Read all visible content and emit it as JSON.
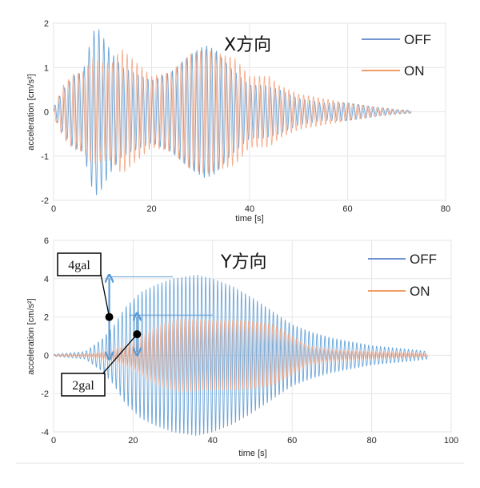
{
  "colors": {
    "off": "#5b9bd5",
    "on": "#f4a582",
    "off_legend": "#4472c4",
    "on_legend": "#ed7d31",
    "annotation": "#5b9bd5"
  },
  "chart_data": [
    {
      "type": "line",
      "title": "X方向",
      "xlabel": "time [s]",
      "ylabel": "acceleration [cm/s²]",
      "xlim": [
        0,
        80
      ],
      "ylim": [
        -2,
        2
      ],
      "xticks": [
        "0",
        "20",
        "40",
        "60",
        "80"
      ],
      "yticks": [
        "-2",
        "-1",
        "0",
        "1",
        "2"
      ],
      "grid": true,
      "legend_position": "top-right",
      "series": [
        {
          "name": "OFF",
          "frequency_hz": 1.0,
          "duration": [
            0,
            73
          ],
          "envelope": [
            [
              0,
              0.1
            ],
            [
              2,
              0.5
            ],
            [
              4,
              0.8
            ],
            [
              6,
              0.9
            ],
            [
              8,
              1.8
            ],
            [
              9,
              1.9
            ],
            [
              10,
              1.7
            ],
            [
              12,
              1.3
            ],
            [
              14,
              1.0
            ],
            [
              16,
              0.9
            ],
            [
              18,
              0.8
            ],
            [
              20,
              0.7
            ],
            [
              24,
              0.9
            ],
            [
              28,
              1.3
            ],
            [
              31,
              1.5
            ],
            [
              33,
              1.4
            ],
            [
              36,
              1.0
            ],
            [
              40,
              0.6
            ],
            [
              43,
              0.6
            ],
            [
              46,
              0.5
            ],
            [
              50,
              0.3
            ],
            [
              55,
              0.2
            ],
            [
              60,
              0.2
            ],
            [
              66,
              0.1
            ],
            [
              70,
              0.05
            ],
            [
              73,
              0.03
            ]
          ]
        },
        {
          "name": "ON",
          "frequency_hz": 1.0,
          "duration": [
            0,
            73
          ],
          "envelope": [
            [
              0,
              0.1
            ],
            [
              2,
              0.6
            ],
            [
              4,
              0.85
            ],
            [
              6,
              0.9
            ],
            [
              8,
              1.2
            ],
            [
              10,
              1.1
            ],
            [
              12,
              1.1
            ],
            [
              13,
              1.3
            ],
            [
              14,
              1.4
            ],
            [
              16,
              1.2
            ],
            [
              18,
              1.0
            ],
            [
              20,
              0.8
            ],
            [
              24,
              0.9
            ],
            [
              28,
              1.3
            ],
            [
              31,
              1.4
            ],
            [
              34,
              1.3
            ],
            [
              37,
              1.2
            ],
            [
              40,
              0.8
            ],
            [
              44,
              0.8
            ],
            [
              46,
              0.6
            ],
            [
              50,
              0.4
            ],
            [
              55,
              0.3
            ],
            [
              60,
              0.2
            ],
            [
              66,
              0.1
            ],
            [
              70,
              0.05
            ],
            [
              73,
              0.03
            ]
          ]
        }
      ]
    },
    {
      "type": "line",
      "title": "Y方向",
      "xlabel": "time [s]",
      "ylabel": "acceleration [cm/s²]",
      "xlim": [
        0,
        100
      ],
      "ylim": [
        -4,
        6
      ],
      "xticks": [
        "0",
        "20",
        "40",
        "60",
        "80",
        "100"
      ],
      "yticks": [
        "-4",
        "-2",
        "0",
        "2",
        "4",
        "6"
      ],
      "grid": true,
      "legend_position": "top-right",
      "series": [
        {
          "name": "OFF",
          "frequency_hz": 1.0,
          "duration": [
            0,
            94
          ],
          "envelope": [
            [
              0,
              0.05
            ],
            [
              8,
              0.2
            ],
            [
              12,
              0.8
            ],
            [
              15,
              1.5
            ],
            [
              18,
              2.5
            ],
            [
              22,
              3.3
            ],
            [
              26,
              3.7
            ],
            [
              30,
              4.0
            ],
            [
              33,
              4.1
            ],
            [
              36,
              4.2
            ],
            [
              40,
              4.0
            ],
            [
              45,
              3.6
            ],
            [
              50,
              3.0
            ],
            [
              55,
              2.3
            ],
            [
              60,
              1.6
            ],
            [
              65,
              1.2
            ],
            [
              70,
              0.9
            ],
            [
              75,
              0.7
            ],
            [
              80,
              0.5
            ],
            [
              85,
              0.4
            ],
            [
              90,
              0.3
            ],
            [
              94,
              0.2
            ]
          ]
        },
        {
          "name": "ON",
          "frequency_hz": 1.0,
          "duration": [
            0,
            94
          ],
          "envelope": [
            [
              0,
              0.05
            ],
            [
              10,
              0.1
            ],
            [
              15,
              0.3
            ],
            [
              20,
              0.7
            ],
            [
              24,
              1.3
            ],
            [
              28,
              1.7
            ],
            [
              32,
              1.9
            ],
            [
              40,
              1.8
            ],
            [
              48,
              1.8
            ],
            [
              55,
              1.6
            ],
            [
              60,
              1.0
            ],
            [
              64,
              0.5
            ],
            [
              70,
              0.3
            ],
            [
              80,
              0.2
            ],
            [
              90,
              0.15
            ],
            [
              94,
              0.1
            ]
          ]
        }
      ],
      "annotations": [
        {
          "label": "4gal",
          "from": -0.1,
          "to": 4.1
        },
        {
          "label": "2gal",
          "from": 0.1,
          "to": 2.1
        }
      ]
    }
  ]
}
